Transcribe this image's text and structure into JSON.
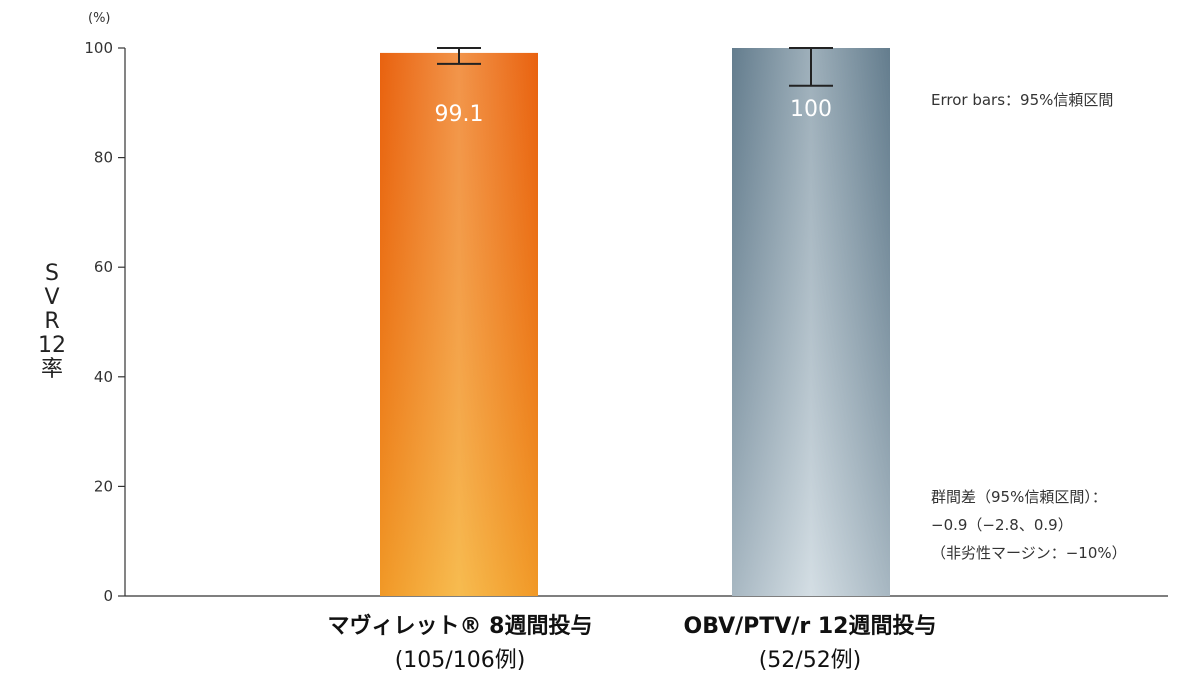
{
  "chart_data": {
    "type": "bar",
    "ylabel": "SVR12率",
    "y_unit": "(%)",
    "ylim": [
      0,
      100
    ],
    "yticks": [
      0,
      20,
      40,
      60,
      80,
      100
    ],
    "categories": [
      {
        "name": "マヴィレット® 8週間投与",
        "n": "(105/106例)"
      },
      {
        "name": "OBV/PTV/r 12週間投与",
        "n": "(52/52例)"
      }
    ],
    "values": [
      99.1,
      100
    ],
    "value_labels": [
      "99.1",
      "100"
    ],
    "error_bars": [
      {
        "low": 97.1,
        "high": 100
      },
      {
        "low": 93.1,
        "high": 100
      }
    ],
    "colors": [
      "#f07a1a",
      "#8aa3b3"
    ],
    "grid": false,
    "legend": "none"
  },
  "notes": {
    "error_bars": "Error bars：95%信頼区間",
    "difference_title": "群間差（95%信頼区間）：",
    "difference_value": "−0.9（−2.8、0.9）",
    "margin": "（非劣性マージン：−10%）"
  }
}
